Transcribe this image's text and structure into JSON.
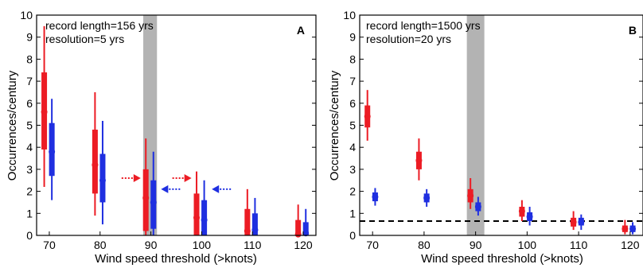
{
  "colors": {
    "red": "#ec1c24",
    "blue": "#1f2fe0",
    "shade": "#b3b3b3",
    "axis": "#000000"
  },
  "chart_data": [
    {
      "type": "scatter",
      "panel_label": "A",
      "annotations": [
        "record length=156 yrs",
        "resolution=5 yrs"
      ],
      "xlabel": "Wind speed threshold (>knots)",
      "ylabel": "Occurrences/century",
      "xlim": [
        67.5,
        122.5
      ],
      "ylim": [
        0,
        10
      ],
      "xticks": [
        "70",
        "80",
        "90",
        "100",
        "110",
        "120"
      ],
      "xtick_values": [
        70,
        80,
        90,
        100,
        110,
        120
      ],
      "yticks": [
        "0",
        "1",
        "2",
        "3",
        "4",
        "5",
        "6",
        "7",
        "8",
        "9",
        "10"
      ],
      "ytick_values": [
        0,
        1,
        2,
        3,
        4,
        5,
        6,
        7,
        8,
        9,
        10
      ],
      "shaded_band": [
        88.5,
        91.2
      ],
      "dashed_line": null,
      "arrows": [
        {
          "color": "red",
          "x": 88,
          "y": 2.6,
          "direction": "right"
        },
        {
          "color": "blue",
          "x": 92,
          "y": 2.1,
          "direction": "left"
        },
        {
          "color": "red",
          "x": 98,
          "y": 2.6,
          "direction": "right"
        },
        {
          "color": "blue",
          "x": 102,
          "y": 2.1,
          "direction": "left"
        }
      ],
      "series": [
        {
          "color": "red",
          "x": [
            69,
            79,
            89,
            99,
            109,
            119
          ],
          "median": [
            5.6,
            3.2,
            1.7,
            0.8,
            0.2,
            0.05
          ],
          "inner": [
            [
              3.9,
              7.4
            ],
            [
              1.9,
              4.8
            ],
            [
              0.2,
              3.0
            ],
            [
              0.0,
              1.9
            ],
            [
              0.0,
              1.2
            ],
            [
              0.0,
              0.7
            ]
          ],
          "outer": [
            [
              2.2,
              9.5
            ],
            [
              0.9,
              6.5
            ],
            [
              0.0,
              4.4
            ],
            [
              0.0,
              2.9
            ],
            [
              0.0,
              2.1
            ],
            [
              0.0,
              1.4
            ]
          ]
        },
        {
          "color": "blue",
          "x": [
            70.5,
            80.5,
            90.5,
            100.5,
            110.5,
            120.5
          ],
          "median": [
            3.8,
            2.5,
            1.5,
            0.7,
            0.25,
            0.1
          ],
          "inner": [
            [
              2.7,
              5.1
            ],
            [
              1.5,
              3.7
            ],
            [
              0.3,
              2.5
            ],
            [
              0.0,
              1.6
            ],
            [
              0.0,
              1.0
            ],
            [
              0.0,
              0.6
            ]
          ],
          "outer": [
            [
              1.6,
              6.2
            ],
            [
              0.5,
              5.2
            ],
            [
              0.0,
              3.8
            ],
            [
              0.0,
              2.5
            ],
            [
              0.0,
              1.7
            ],
            [
              0.0,
              1.2
            ]
          ]
        }
      ]
    },
    {
      "type": "scatter",
      "panel_label": "B",
      "annotations": [
        "record length=1500 yrs",
        "resolution=20 yrs"
      ],
      "xlabel": "Wind speed threshold (>knots)",
      "ylabel": "Occurrences/century",
      "xlim": [
        67.5,
        122.5
      ],
      "ylim": [
        0,
        10
      ],
      "xticks": [
        "70",
        "80",
        "90",
        "100",
        "110",
        "120"
      ],
      "xtick_values": [
        70,
        80,
        90,
        100,
        110,
        120
      ],
      "yticks": [
        "0",
        "1",
        "2",
        "3",
        "4",
        "5",
        "6",
        "7",
        "8",
        "9",
        "10"
      ],
      "ytick_values": [
        0,
        1,
        2,
        3,
        4,
        5,
        6,
        7,
        8,
        9,
        10
      ],
      "shaded_band": [
        88.3,
        91.7
      ],
      "dashed_line": 0.65,
      "arrows": [],
      "series": [
        {
          "color": "red",
          "x": [
            69,
            79,
            89,
            99,
            109,
            119
          ],
          "median": [
            5.4,
            3.4,
            1.8,
            1.1,
            0.6,
            0.3
          ],
          "inner": [
            [
              4.9,
              5.9
            ],
            [
              3.0,
              3.8
            ],
            [
              1.5,
              2.1
            ],
            [
              0.85,
              1.3
            ],
            [
              0.4,
              0.8
            ],
            [
              0.15,
              0.45
            ]
          ],
          "outer": [
            [
              4.3,
              6.6
            ],
            [
              2.5,
              4.4
            ],
            [
              1.2,
              2.6
            ],
            [
              0.65,
              1.6
            ],
            [
              0.25,
              1.1
            ],
            [
              0.05,
              0.7
            ]
          ]
        },
        {
          "color": "blue",
          "x": [
            70.5,
            80.5,
            90.5,
            100.5,
            110.5,
            120.5
          ],
          "median": [
            1.75,
            1.7,
            1.3,
            0.85,
            0.6,
            0.3
          ],
          "inner": [
            [
              1.55,
              1.95
            ],
            [
              1.5,
              1.9
            ],
            [
              1.1,
              1.5
            ],
            [
              0.65,
              1.05
            ],
            [
              0.45,
              0.8
            ],
            [
              0.15,
              0.45
            ]
          ],
          "outer": [
            [
              1.35,
              2.15
            ],
            [
              1.3,
              2.1
            ],
            [
              0.9,
              1.75
            ],
            [
              0.45,
              1.3
            ],
            [
              0.25,
              0.95
            ],
            [
              0.05,
              0.6
            ]
          ]
        }
      ]
    }
  ]
}
